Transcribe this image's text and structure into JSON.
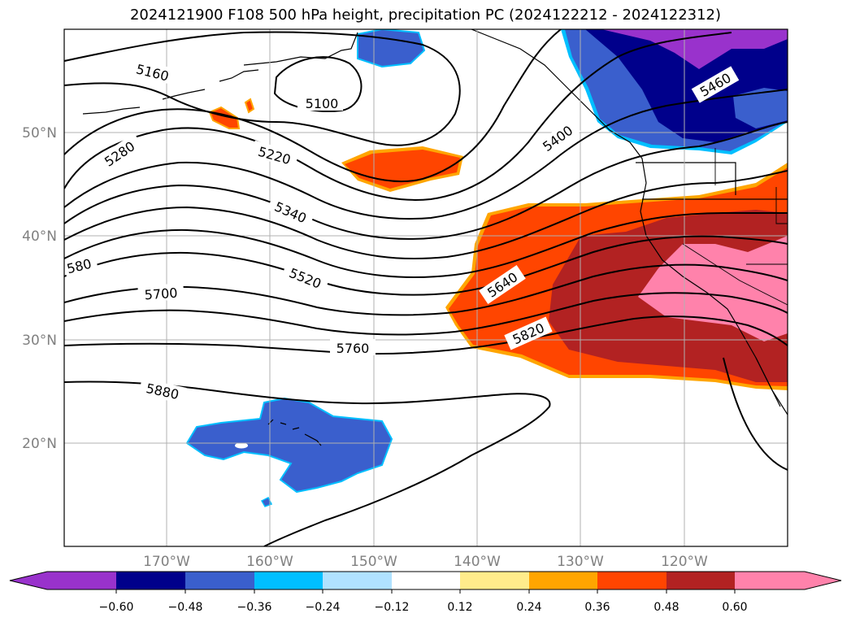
{
  "title": "2024121900 F108 500 hPa height, precipitation PC (2024122212 - 2024122312)",
  "lat_ticks": [
    "50°N",
    "40°N",
    "30°N",
    "20°N"
  ],
  "lon_ticks": [
    "170°W",
    "160°W",
    "150°W",
    "140°W",
    "130°W",
    "120°W"
  ],
  "contour_labels": [
    "5160",
    "5100",
    "5220",
    "5280",
    "5340",
    "5400",
    "5460",
    "5520",
    "580",
    "5640",
    "5700",
    "5760",
    "5820",
    "5880"
  ],
  "colorbar": {
    "tick_labels": [
      "−0.60",
      "−0.48",
      "−0.36",
      "−0.24",
      "−0.12",
      "0.12",
      "0.24",
      "0.36",
      "0.48",
      "0.60"
    ],
    "colors": [
      "#9932cc",
      "#00008b",
      "#3a5fcd",
      "#00bfff",
      "#b0e2ff",
      "#ffffff",
      "#ffec8b",
      "#ffa500",
      "#ff4500",
      "#b22222",
      "#ff82ab",
      "#ff82ab"
    ]
  }
}
